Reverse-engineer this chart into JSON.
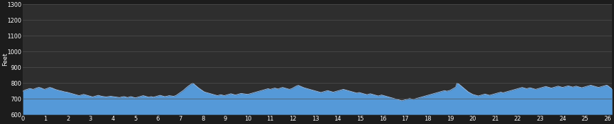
{
  "background_color": "#1c1c1c",
  "plot_bg_color": "#2e2e2e",
  "fill_color": "#5599d8",
  "line_color": "#a8c8f0",
  "grid_color": "#505050",
  "text_color": "#ffffff",
  "ylabel": "Feet",
  "xlim": [
    0,
    26.2
  ],
  "ylim": [
    600,
    1300
  ],
  "xticks": [
    0,
    1,
    2,
    3,
    4,
    5,
    6,
    7,
    8,
    9,
    10,
    11,
    12,
    13,
    14,
    15,
    16,
    17,
    18,
    19,
    20,
    21,
    22,
    23,
    24,
    25,
    26
  ],
  "yticks": [
    600,
    700,
    800,
    900,
    1000,
    1100,
    1200,
    1300
  ],
  "figsize": [
    8.92,
    1.81
  ],
  "dpi": 100,
  "elevation_x": [
    0.0,
    0.05,
    0.1,
    0.15,
    0.2,
    0.25,
    0.3,
    0.35,
    0.4,
    0.45,
    0.5,
    0.55,
    0.6,
    0.65,
    0.7,
    0.75,
    0.8,
    0.85,
    0.9,
    0.95,
    1.0,
    1.05,
    1.1,
    1.15,
    1.2,
    1.25,
    1.3,
    1.35,
    1.4,
    1.45,
    1.5,
    1.55,
    1.6,
    1.65,
    1.7,
    1.75,
    1.8,
    1.85,
    1.9,
    1.95,
    2.0,
    2.05,
    2.1,
    2.15,
    2.2,
    2.25,
    2.3,
    2.35,
    2.4,
    2.45,
    2.5,
    2.55,
    2.6,
    2.65,
    2.7,
    2.75,
    2.8,
    2.85,
    2.9,
    2.95,
    3.0,
    3.05,
    3.1,
    3.15,
    3.2,
    3.25,
    3.3,
    3.35,
    3.4,
    3.45,
    3.5,
    3.55,
    3.6,
    3.65,
    3.7,
    3.75,
    3.8,
    3.85,
    3.9,
    3.95,
    4.0,
    4.05,
    4.1,
    4.15,
    4.2,
    4.25,
    4.3,
    4.35,
    4.4,
    4.45,
    4.5,
    4.55,
    4.6,
    4.65,
    4.7,
    4.75,
    4.8,
    4.85,
    4.9,
    4.95,
    5.0,
    5.05,
    5.1,
    5.15,
    5.2,
    5.25,
    5.3,
    5.35,
    5.4,
    5.45,
    5.5,
    5.55,
    5.6,
    5.65,
    5.7,
    5.75,
    5.8,
    5.85,
    5.9,
    5.95,
    6.0,
    6.05,
    6.1,
    6.15,
    6.2,
    6.25,
    6.3,
    6.35,
    6.4,
    6.45,
    6.5,
    6.55,
    6.6,
    6.65,
    6.7,
    6.75,
    6.8,
    6.85,
    6.9,
    6.95,
    7.0,
    7.05,
    7.1,
    7.15,
    7.2,
    7.25,
    7.3,
    7.35,
    7.4,
    7.45,
    7.5,
    7.55,
    7.6,
    7.65,
    7.7,
    7.75,
    7.8,
    7.85,
    7.9,
    7.95,
    8.0,
    8.05,
    8.1,
    8.15,
    8.2,
    8.25,
    8.3,
    8.35,
    8.4,
    8.45,
    8.5,
    8.55,
    8.6,
    8.65,
    8.7,
    8.75,
    8.8,
    8.85,
    8.9,
    8.95,
    9.0,
    9.05,
    9.1,
    9.15,
    9.2,
    9.25,
    9.3,
    9.35,
    9.4,
    9.45,
    9.5,
    9.55,
    9.6,
    9.65,
    9.7,
    9.75,
    9.8,
    9.85,
    9.9,
    9.95,
    10.0,
    10.05,
    10.1,
    10.15,
    10.2,
    10.25,
    10.3,
    10.35,
    10.4,
    10.45,
    10.5,
    10.55,
    10.6,
    10.65,
    10.7,
    10.75,
    10.8,
    10.85,
    10.9,
    10.95,
    11.0,
    11.05,
    11.1,
    11.15,
    11.2,
    11.25,
    11.3,
    11.35,
    11.4,
    11.45,
    11.5,
    11.55,
    11.6,
    11.65,
    11.7,
    11.75,
    11.8,
    11.85,
    11.9,
    11.95,
    12.0,
    12.05,
    12.1,
    12.15,
    12.2,
    12.25,
    12.3,
    12.35,
    12.4,
    12.45,
    12.5,
    12.55,
    12.6,
    12.65,
    12.7,
    12.75,
    12.8,
    12.85,
    12.9,
    12.95,
    13.0,
    13.05,
    13.1,
    13.15,
    13.2,
    13.25,
    13.3,
    13.35,
    13.4,
    13.45,
    13.5,
    13.55,
    13.6,
    13.65,
    13.7,
    13.75,
    13.8,
    13.85,
    13.9,
    13.95,
    14.0,
    14.05,
    14.1,
    14.15,
    14.2,
    14.25,
    14.3,
    14.35,
    14.4,
    14.45,
    14.5,
    14.55,
    14.6,
    14.65,
    14.7,
    14.75,
    14.8,
    14.85,
    14.9,
    14.95,
    15.0,
    15.05,
    15.1,
    15.15,
    15.2,
    15.25,
    15.3,
    15.35,
    15.4,
    15.45,
    15.5,
    15.55,
    15.6,
    15.65,
    15.7,
    15.75,
    15.8,
    15.85,
    15.9,
    15.95,
    16.0,
    16.05,
    16.1,
    16.15,
    16.2,
    16.25,
    16.3,
    16.35,
    16.4,
    16.45,
    16.5,
    16.55,
    16.6,
    16.65,
    16.7,
    16.75,
    16.8,
    16.85,
    16.9,
    16.95,
    17.0,
    17.05,
    17.1,
    17.15,
    17.2,
    17.25,
    17.3,
    17.35,
    17.4,
    17.45,
    17.5,
    17.55,
    17.6,
    17.65,
    17.7,
    17.75,
    17.8,
    17.85,
    17.9,
    17.95,
    18.0,
    18.05,
    18.1,
    18.15,
    18.2,
    18.25,
    18.3,
    18.35,
    18.4,
    18.45,
    18.5,
    18.55,
    18.6,
    18.65,
    18.7,
    18.75,
    18.8,
    18.85,
    18.9,
    18.95,
    19.0,
    19.05,
    19.1,
    19.15,
    19.2,
    19.25,
    19.3,
    19.35,
    19.4,
    19.45,
    19.5,
    19.55,
    19.6,
    19.65,
    19.7,
    19.75,
    19.8,
    19.85,
    19.9,
    19.95,
    20.0,
    20.05,
    20.1,
    20.15,
    20.2,
    20.25,
    20.3,
    20.35,
    20.4,
    20.45,
    20.5,
    20.55,
    20.6,
    20.65,
    20.7,
    20.75,
    20.8,
    20.85,
    20.9,
    20.95,
    21.0,
    21.05,
    21.1,
    21.15,
    21.2,
    21.25,
    21.3,
    21.35,
    21.4,
    21.45,
    21.5,
    21.55,
    21.6,
    21.65,
    21.7,
    21.75,
    21.8,
    21.85,
    21.9,
    21.95,
    22.0,
    22.05,
    22.1,
    22.15,
    22.2,
    22.25,
    22.3,
    22.35,
    22.4,
    22.45,
    22.5,
    22.55,
    22.6,
    22.65,
    22.7,
    22.75,
    22.8,
    22.85,
    22.9,
    22.95,
    23.0,
    23.05,
    23.1,
    23.15,
    23.2,
    23.25,
    23.3,
    23.35,
    23.4,
    23.45,
    23.5,
    23.55,
    23.6,
    23.65,
    23.7,
    23.75,
    23.8,
    23.85,
    23.9,
    23.95,
    24.0,
    24.05,
    24.1,
    24.15,
    24.2,
    24.25,
    24.3,
    24.35,
    24.4,
    24.45,
    24.5,
    24.55,
    24.6,
    24.65,
    24.7,
    24.75,
    24.8,
    24.85,
    24.9,
    24.95,
    25.0,
    25.05,
    25.1,
    25.15,
    25.2,
    25.25,
    25.3,
    25.35,
    25.4,
    25.45,
    25.5,
    25.55,
    25.6,
    25.65,
    25.7,
    25.75,
    25.8,
    25.85,
    25.9,
    25.95,
    26.0,
    26.2
  ],
  "elevation_y": [
    748,
    752,
    756,
    758,
    760,
    763,
    765,
    764,
    762,
    760,
    762,
    765,
    768,
    770,
    772,
    771,
    769,
    766,
    763,
    760,
    762,
    764,
    767,
    770,
    772,
    770,
    768,
    765,
    762,
    759,
    757,
    755,
    753,
    751,
    750,
    748,
    746,
    744,
    743,
    742,
    740,
    738,
    736,
    734,
    732,
    730,
    728,
    726,
    724,
    722,
    720,
    722,
    724,
    726,
    728,
    726,
    724,
    722,
    720,
    718,
    716,
    714,
    712,
    714,
    716,
    718,
    720,
    722,
    720,
    718,
    716,
    715,
    714,
    713,
    712,
    713,
    714,
    715,
    716,
    715,
    714,
    713,
    712,
    711,
    710,
    709,
    708,
    710,
    712,
    713,
    714,
    712,
    710,
    708,
    710,
    712,
    714,
    712,
    710,
    708,
    706,
    708,
    710,
    712,
    714,
    716,
    718,
    720,
    718,
    716,
    714,
    712,
    710,
    712,
    714,
    712,
    710,
    712,
    714,
    716,
    718,
    720,
    722,
    720,
    718,
    716,
    714,
    715,
    716,
    718,
    720,
    719,
    718,
    717,
    716,
    718,
    720,
    725,
    730,
    735,
    740,
    745,
    750,
    755,
    762,
    768,
    774,
    780,
    785,
    790,
    795,
    800,
    795,
    788,
    782,
    776,
    770,
    765,
    760,
    755,
    750,
    745,
    742,
    740,
    738,
    736,
    734,
    732,
    730,
    728,
    726,
    724,
    722,
    720,
    722,
    724,
    726,
    724,
    722,
    720,
    722,
    724,
    726,
    728,
    730,
    732,
    730,
    728,
    726,
    724,
    726,
    728,
    730,
    732,
    734,
    733,
    732,
    731,
    730,
    729,
    728,
    730,
    732,
    734,
    736,
    738,
    740,
    742,
    744,
    746,
    748,
    750,
    752,
    754,
    756,
    758,
    760,
    762,
    764,
    762,
    760,
    762,
    764,
    766,
    768,
    766,
    764,
    762,
    765,
    768,
    770,
    772,
    770,
    768,
    766,
    764,
    762,
    760,
    762,
    764,
    768,
    772,
    776,
    780,
    783,
    785,
    782,
    779,
    776,
    773,
    770,
    768,
    766,
    764,
    762,
    760,
    758,
    756,
    754,
    752,
    750,
    748,
    746,
    744,
    742,
    740,
    742,
    744,
    746,
    748,
    750,
    752,
    750,
    748,
    746,
    744,
    742,
    744,
    746,
    748,
    750,
    752,
    754,
    756,
    758,
    760,
    758,
    756,
    754,
    752,
    750,
    748,
    746,
    744,
    742,
    740,
    738,
    736,
    738,
    740,
    738,
    736,
    734,
    732,
    730,
    728,
    726,
    728,
    730,
    732,
    730,
    728,
    726,
    724,
    722,
    720,
    718,
    720,
    722,
    724,
    722,
    720,
    718,
    716,
    714,
    712,
    710,
    708,
    706,
    704,
    702,
    700,
    698,
    696,
    694,
    692,
    690,
    688,
    690,
    692,
    694,
    696,
    698,
    700,
    702,
    700,
    698,
    696,
    698,
    700,
    702,
    704,
    706,
    708,
    710,
    712,
    714,
    716,
    718,
    720,
    722,
    724,
    726,
    728,
    730,
    732,
    734,
    736,
    738,
    740,
    742,
    744,
    746,
    748,
    750,
    752,
    750,
    748,
    750,
    752,
    754,
    758,
    762,
    766,
    770,
    775,
    800,
    797,
    792,
    786,
    780,
    774,
    768,
    762,
    756,
    750,
    744,
    740,
    736,
    732,
    728,
    726,
    724,
    722,
    720,
    718,
    720,
    722,
    724,
    726,
    728,
    730,
    728,
    726,
    724,
    722,
    724,
    726,
    728,
    730,
    732,
    734,
    736,
    738,
    740,
    742,
    740,
    738,
    740,
    742,
    744,
    746,
    748,
    750,
    752,
    754,
    756,
    758,
    760,
    762,
    764,
    766,
    768,
    770,
    772,
    770,
    768,
    766,
    764,
    766,
    768,
    770,
    768,
    766,
    764,
    762,
    760,
    762,
    764,
    766,
    768,
    770,
    772,
    774,
    776,
    778,
    776,
    774,
    772,
    770,
    768,
    770,
    772,
    774,
    776,
    778,
    780,
    778,
    776,
    774,
    772,
    774,
    776,
    778,
    780,
    782,
    780,
    778,
    776,
    774,
    776,
    778,
    780,
    778,
    776,
    774,
    772,
    770,
    772,
    774,
    776,
    778,
    780,
    782,
    784,
    786,
    784,
    782,
    780,
    778,
    776,
    774,
    772,
    774,
    776,
    778,
    780,
    782,
    784,
    786,
    784,
    762
  ]
}
